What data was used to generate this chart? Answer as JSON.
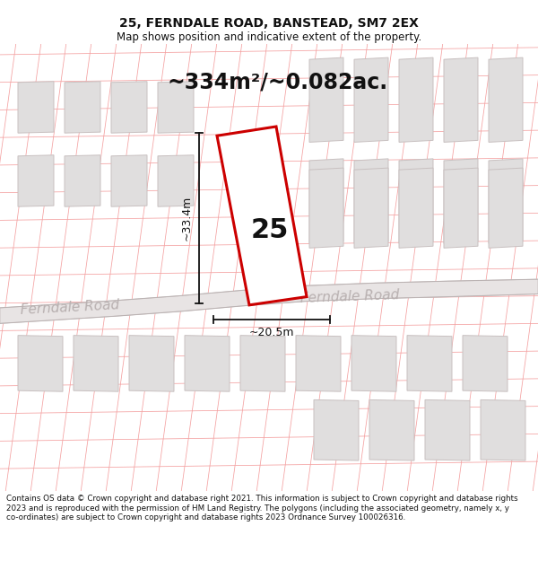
{
  "title_line1": "25, FERNDALE ROAD, BANSTEAD, SM7 2EX",
  "title_line2": "Map shows position and indicative extent of the property.",
  "area_text": "~334m²/~0.082ac.",
  "label_25": "25",
  "dim_vertical": "~33.4m",
  "dim_horizontal": "~20.5m",
  "road_name_left": "Ferndale Road",
  "road_name_right": "Ferndale Road",
  "footer_text": "Contains OS data © Crown copyright and database right 2021. This information is subject to Crown copyright and database rights 2023 and is reproduced with the permission of HM Land Registry. The polygons (including the associated geometry, namely x, y co-ordinates) are subject to Crown copyright and database rights 2023 Ordnance Survey 100026316.",
  "bg_color": "#ffffff",
  "map_bg": "#ffffff",
  "parcel_line_color": "#f4a0a0",
  "building_fill": "#e0dede",
  "building_edge": "#c8c0c0",
  "road_fill": "#e8e4e4",
  "road_edge": "#d0c8c8",
  "property_fill": "#ffffff",
  "property_outline": "#cc0000",
  "text_color": "#111111",
  "road_text_color": "#b8b0b0",
  "dim_line_color": "#111111",
  "title_fontsize": 10,
  "subtitle_fontsize": 8.5,
  "area_fontsize": 17,
  "num_fontsize": 22,
  "dim_fontsize": 9,
  "road_label_fontsize": 11,
  "footer_fontsize": 6.3
}
